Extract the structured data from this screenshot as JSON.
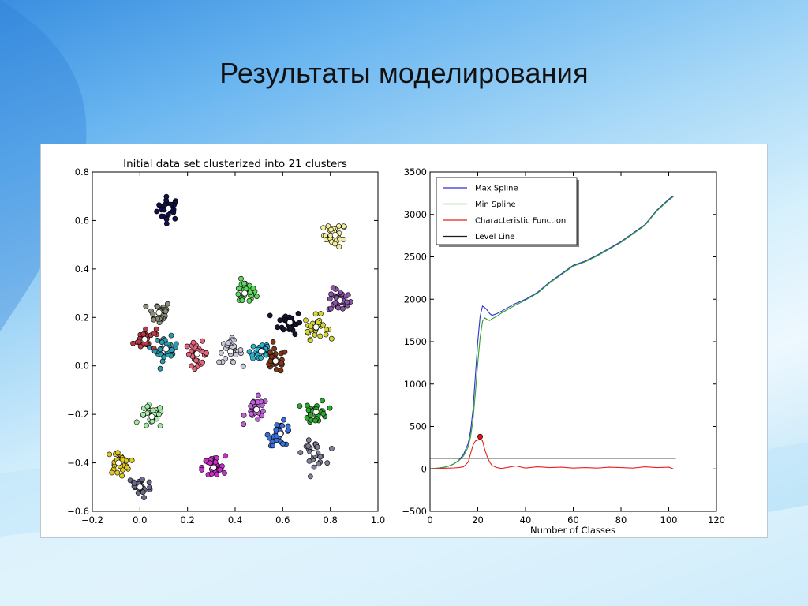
{
  "slide": {
    "title": "Результаты моделирования"
  },
  "chart_data": [
    {
      "type": "scatter",
      "title": "Initial data set clusterized into 21 clusters",
      "xlabel": "",
      "ylabel": "",
      "xlim": [
        -0.2,
        1.0
      ],
      "ylim": [
        -0.6,
        0.8
      ],
      "xticks": [
        -0.2,
        0.0,
        0.2,
        0.4,
        0.6,
        0.8,
        1.0
      ],
      "yticks": [
        -0.6,
        -0.4,
        -0.2,
        0.0,
        0.2,
        0.4,
        0.6,
        0.8
      ],
      "xtick_labels": [
        "−0.2",
        "0.0",
        "0.2",
        "0.4",
        "0.6",
        "0.8",
        "1.0"
      ],
      "ytick_labels": [
        "−0.6",
        "−0.4",
        "−0.2",
        "0.0",
        "0.2",
        "0.4",
        "0.6",
        "0.8"
      ],
      "grid": false,
      "point_spread": 0.03,
      "points_per_cluster": 30,
      "center_marker_color": "#ffffff",
      "clusters": [
        {
          "cx": 0.12,
          "cy": 0.65,
          "color": "#10104a"
        },
        {
          "cx": 0.82,
          "cy": 0.54,
          "color": "#f3ef9e"
        },
        {
          "cx": 0.44,
          "cy": 0.3,
          "color": "#5fd85f"
        },
        {
          "cx": 0.84,
          "cy": 0.27,
          "color": "#8a55a8"
        },
        {
          "cx": 0.08,
          "cy": 0.22,
          "color": "#8c8c7a"
        },
        {
          "cx": 0.63,
          "cy": 0.18,
          "color": "#151530"
        },
        {
          "cx": 0.74,
          "cy": 0.16,
          "color": "#d4d43a"
        },
        {
          "cx": 0.02,
          "cy": 0.11,
          "color": "#b83a48"
        },
        {
          "cx": 0.11,
          "cy": 0.07,
          "color": "#2f99ad"
        },
        {
          "cx": 0.24,
          "cy": 0.05,
          "color": "#e2637a"
        },
        {
          "cx": 0.38,
          "cy": 0.06,
          "color": "#c8c8d8"
        },
        {
          "cx": 0.51,
          "cy": 0.06,
          "color": "#2ab0cc"
        },
        {
          "cx": 0.57,
          "cy": 0.02,
          "color": "#7a3818"
        },
        {
          "cx": 0.05,
          "cy": -0.21,
          "color": "#a6e8a6"
        },
        {
          "cx": 0.49,
          "cy": -0.18,
          "color": "#c060d8"
        },
        {
          "cx": 0.74,
          "cy": -0.19,
          "color": "#2ca82c"
        },
        {
          "cx": 0.59,
          "cy": -0.28,
          "color": "#3a6fd8"
        },
        {
          "cx": 0.73,
          "cy": -0.36,
          "color": "#808098"
        },
        {
          "cx": -0.09,
          "cy": -0.4,
          "color": "#e0c820"
        },
        {
          "cx": 0.31,
          "cy": -0.42,
          "color": "#cc2ccc"
        },
        {
          "cx": 0.0,
          "cy": -0.5,
          "color": "#6a6a88"
        }
      ]
    },
    {
      "type": "line",
      "title": "",
      "xlabel": "Number of Classes",
      "ylabel": "",
      "xlim": [
        0,
        120
      ],
      "ylim": [
        -500,
        3500
      ],
      "xticks": [
        0,
        20,
        40,
        60,
        80,
        100,
        120
      ],
      "yticks": [
        -500,
        0,
        500,
        1000,
        1500,
        2000,
        2500,
        3000,
        3500
      ],
      "xtick_labels": [
        "0",
        "20",
        "40",
        "60",
        "80",
        "100",
        "120"
      ],
      "ytick_labels": [
        "−500",
        "0",
        "500",
        "1000",
        "1500",
        "2000",
        "2500",
        "3000",
        "3500"
      ],
      "grid": false,
      "legend_position": "top-left",
      "series": [
        {
          "name": "Max Spline",
          "color": "#3030d0",
          "x": [
            0,
            2,
            4,
            6,
            8,
            10,
            12,
            14,
            16,
            17,
            18,
            19,
            20,
            21,
            22,
            23,
            24,
            25,
            26,
            28,
            30,
            35,
            40,
            45,
            50,
            55,
            60,
            65,
            70,
            75,
            80,
            85,
            90,
            95,
            100,
            102
          ],
          "y": [
            0,
            5,
            12,
            20,
            35,
            60,
            100,
            170,
            300,
            450,
            700,
            1100,
            1500,
            1800,
            1920,
            1900,
            1870,
            1830,
            1810,
            1830,
            1860,
            1940,
            2000,
            2080,
            2200,
            2300,
            2400,
            2450,
            2520,
            2600,
            2680,
            2780,
            2880,
            3050,
            3180,
            3220
          ]
        },
        {
          "name": "Min Spline",
          "color": "#2ca02c",
          "x": [
            0,
            2,
            4,
            6,
            8,
            10,
            12,
            14,
            16,
            17,
            18,
            19,
            20,
            21,
            22,
            23,
            24,
            25,
            26,
            28,
            30,
            35,
            40,
            45,
            50,
            55,
            60,
            65,
            70,
            75,
            80,
            85,
            90,
            95,
            100,
            102
          ],
          "y": [
            0,
            5,
            12,
            20,
            35,
            60,
            95,
            150,
            260,
            380,
            580,
            900,
            1250,
            1550,
            1740,
            1780,
            1760,
            1750,
            1770,
            1800,
            1840,
            1920,
            1990,
            2070,
            2190,
            2290,
            2390,
            2440,
            2510,
            2590,
            2670,
            2770,
            2870,
            3040,
            3170,
            3210
          ]
        },
        {
          "name": "Characteristic Function",
          "color": "#e82020",
          "x": [
            0,
            2,
            4,
            6,
            8,
            10,
            12,
            14,
            16,
            17,
            18,
            19,
            20,
            21,
            22,
            23,
            24,
            25,
            26,
            28,
            30,
            33,
            36,
            40,
            45,
            50,
            55,
            60,
            65,
            70,
            75,
            80,
            85,
            90,
            95,
            100,
            102
          ],
          "y": [
            0,
            2,
            5,
            8,
            10,
            12,
            15,
            25,
            80,
            180,
            280,
            330,
            340,
            360,
            330,
            220,
            140,
            80,
            40,
            15,
            5,
            20,
            35,
            10,
            25,
            15,
            20,
            10,
            15,
            10,
            20,
            15,
            10,
            25,
            15,
            20,
            0
          ]
        },
        {
          "name": "Level Line",
          "color": "#1a1a1a",
          "x": [
            0,
            103
          ],
          "y": [
            125,
            125
          ]
        }
      ],
      "marker": {
        "x": 21,
        "y": 380,
        "color": "#e81010"
      }
    }
  ]
}
